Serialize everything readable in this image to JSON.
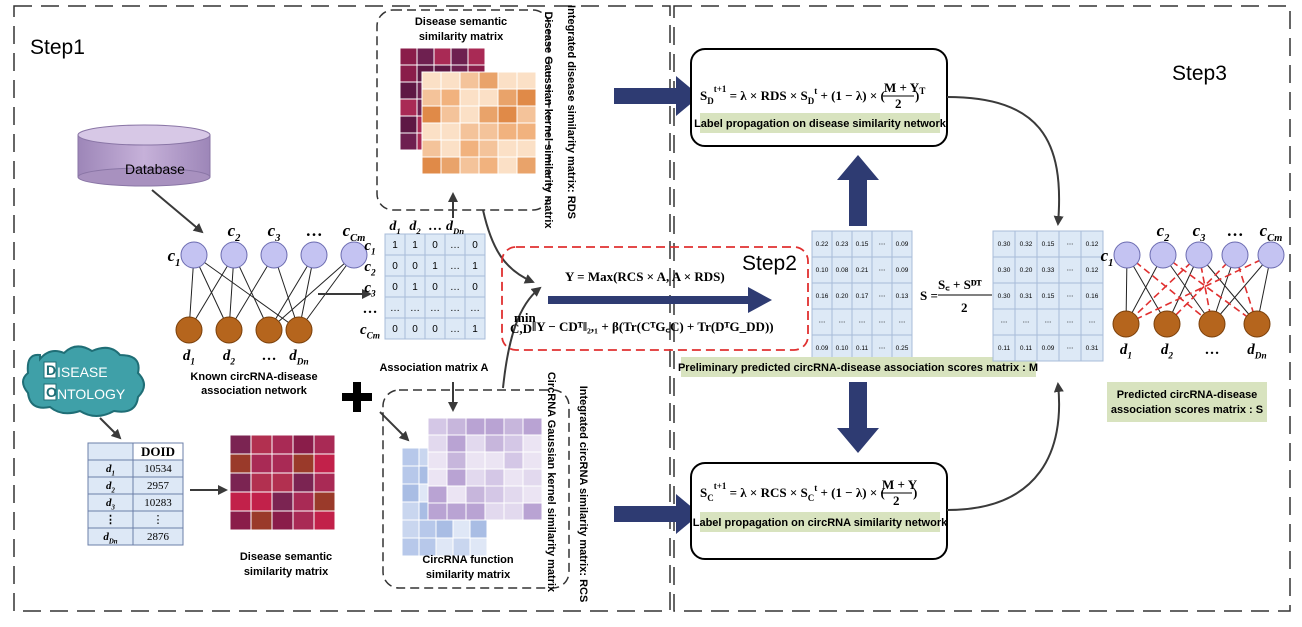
{
  "steps": {
    "step1": "Step1",
    "step2": "Step2",
    "step3": "Step3"
  },
  "database": {
    "label": "Database"
  },
  "ontology": {
    "line1": "ISEASE",
    "line2": "NTOLOGY",
    "cap_d": "D",
    "cap_o": "O"
  },
  "network1": {
    "circ_labels": [
      "c1",
      "c2",
      "c3",
      "…",
      "cCm"
    ],
    "dis_labels": [
      "d1",
      "d2",
      "…",
      "dDn"
    ],
    "caption_line1": "Known circRNA-disease",
    "caption_line2": "association network"
  },
  "doid_table": {
    "header": "DOID",
    "rows": [
      {
        "d": "d1",
        "id": "10534"
      },
      {
        "d": "d2",
        "id": "2957"
      },
      {
        "d": "d3",
        "id": "10283"
      },
      {
        "d": "⋮",
        "id": "⋮"
      },
      {
        "d": "dDn",
        "id": "2876"
      }
    ]
  },
  "disease_semantic_caption": {
    "line1": "Disease semantic",
    "line2": "similarity matrix"
  },
  "association_matrix": {
    "col_labels": [
      "d1",
      "d2",
      "…",
      "dDn"
    ],
    "row_labels": [
      "c1",
      "c2",
      "c3",
      "…",
      "cCm"
    ],
    "rows": [
      [
        "1",
        "1",
        "0",
        "…",
        "0"
      ],
      [
        "0",
        "0",
        "1",
        "…",
        "1"
      ],
      [
        "0",
        "1",
        "0",
        "…",
        "0"
      ],
      [
        "…",
        "…",
        "…",
        "…",
        "…"
      ],
      [
        "0",
        "0",
        "0",
        "…",
        "1"
      ]
    ],
    "caption": "Association  matrix A"
  },
  "disease_box": {
    "top_title_line1": "Disease semantic",
    "top_title_line2": "similarity matrix",
    "side_title": "Disease Gaussian kernel similarity matrix",
    "outer_title": "Integrated disease similarity matrix: RDS"
  },
  "circ_box": {
    "bottom_title_line1": "CircRNA function",
    "bottom_title_line2": "similarity matrix",
    "side_title": "CircRNA Gaussian kernel similarity matrix",
    "outer_title": "Integrated circRNA similarity matrix: RCS"
  },
  "step2_eq1": "Y = Max(RCS × A, A × RDS)",
  "step2_eq2": "‖Y − CDᵀ‖₂,₁ + β(Tr(CᵀG꜀C) + Tr(DᵀG_DD))",
  "step2_min": "min",
  "step2_sub": "C,D",
  "matrix_M": {
    "rows": [
      [
        "0.22",
        "0.23",
        "0.15",
        "⋯",
        "0.09"
      ],
      [
        "0.10",
        "0.08",
        "0.21",
        "⋯",
        "0.09"
      ],
      [
        "0.16",
        "0.20",
        "0.17",
        "⋯",
        "0.13"
      ],
      [
        "⋯",
        "⋯",
        "⋯",
        "⋯",
        "⋯"
      ],
      [
        "0.09",
        "0.10",
        "0.11",
        "⋯",
        "0.25"
      ]
    ],
    "caption": "Preliminary predicted circRNA-disease association scores matrix : M"
  },
  "matrix_S": {
    "rows": [
      [
        "0.30",
        "0.32",
        "0.15",
        "⋯",
        "0.12"
      ],
      [
        "0.30",
        "0.20",
        "0.33",
        "⋯",
        "0.12"
      ],
      [
        "0.30",
        "0.31",
        "0.15",
        "⋯",
        "0.16"
      ],
      [
        "⋯",
        "⋯",
        "⋯",
        "⋯",
        "⋯"
      ],
      [
        "0.11",
        "0.11",
        "0.09",
        "⋯",
        "0.31"
      ]
    ]
  },
  "s_formula": {
    "lhs": "S =",
    "num": "S꜀ + Sᴰᵀ",
    "den": "2"
  },
  "disease_lp": {
    "equation": "S_D^{t+1} = λ × RDS × S_D^t + (1 − λ) × ((M + Y)/2)^T",
    "eq_left": "S",
    "eq_body": " = λ × RDS × S",
    "eq_mid": " + (1 − λ) × (",
    "eq_frac_num": "M + Y",
    "eq_frac_den": "2",
    "eq_end": ")",
    "caption": "Label propagation on disease similarity network"
  },
  "circ_lp": {
    "eq_left": "S",
    "eq_body": " = λ × RCS × S",
    "eq_mid": " + (1 − λ) × (",
    "eq_frac_num": "M + Y",
    "eq_frac_den": "2",
    "eq_end": ")",
    "caption": "Label propagation on circRNA similarity network"
  },
  "final_network": {
    "circ_labels": [
      "c1",
      "c2",
      "c3",
      "…",
      "cCm"
    ],
    "dis_labels": [
      "d1",
      "d2",
      "…",
      "dDn"
    ],
    "caption_line1": "Predicted circRNA-disease",
    "caption_line2": "association scores matrix : S"
  },
  "colors": {
    "navy_arrow": "#2e3b72",
    "caption_bg": "#d8e3bf",
    "node_top": "#c4c3f2",
    "node_bottom": "#b5651d",
    "database": "#b49bc8",
    "red_dash": "#e03030"
  }
}
